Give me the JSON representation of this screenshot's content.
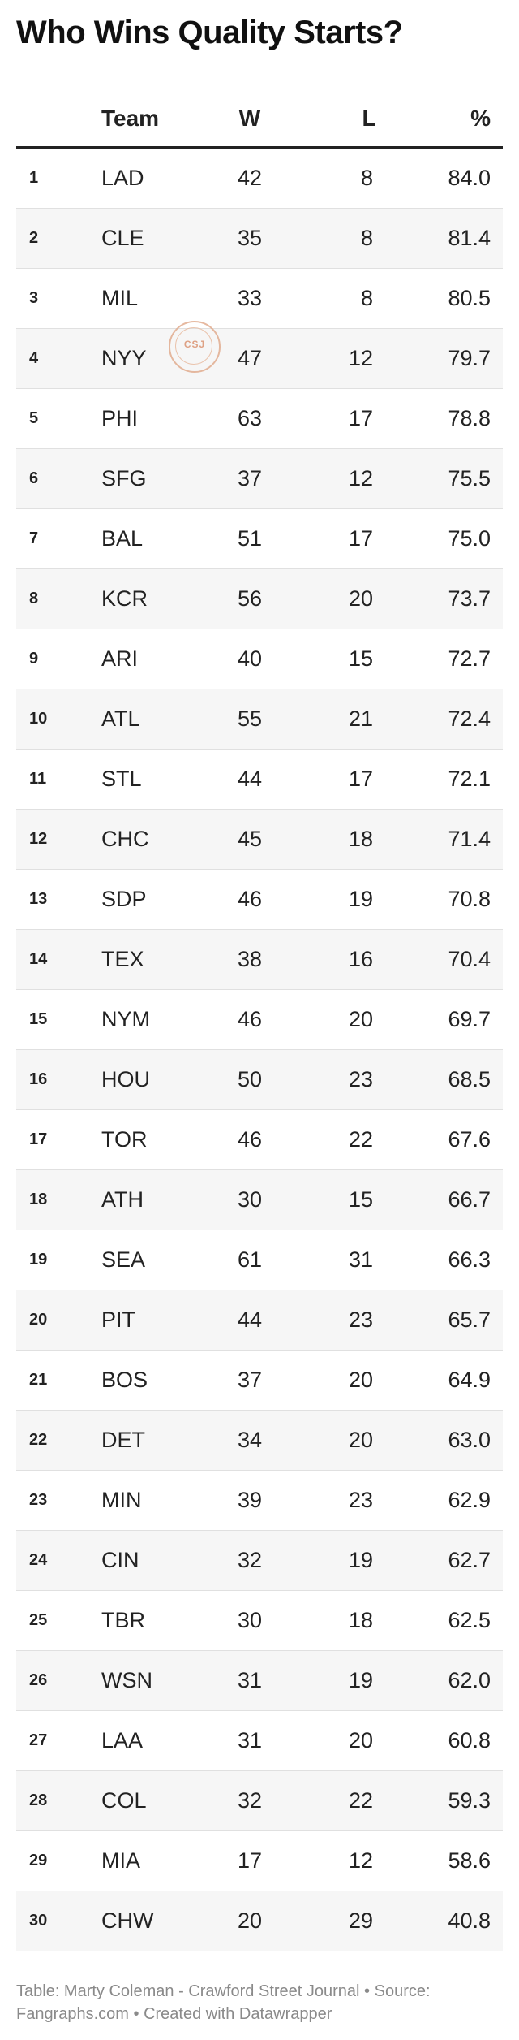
{
  "title": "Who Wins Quality Starts?",
  "columns": {
    "rank": "",
    "team": "Team",
    "w": "W",
    "l": "L",
    "pct": "%"
  },
  "stamp_text": "CSJ",
  "footer": "Table: Marty Coleman - Crawford Street Journal • Source: Fangraphs.com • Created with Datawrapper",
  "chart_data": {
    "type": "table",
    "title": "Who Wins Quality Starts?",
    "columns": [
      "",
      "Team",
      "W",
      "L",
      "%"
    ],
    "rows": [
      {
        "rank": "1",
        "team": "LAD",
        "w": "42",
        "l": "8",
        "pct": "84.0"
      },
      {
        "rank": "2",
        "team": "CLE",
        "w": "35",
        "l": "8",
        "pct": "81.4"
      },
      {
        "rank": "3",
        "team": "MIL",
        "w": "33",
        "l": "8",
        "pct": "80.5"
      },
      {
        "rank": "4",
        "team": "NYY",
        "w": "47",
        "l": "12",
        "pct": "79.7"
      },
      {
        "rank": "5",
        "team": "PHI",
        "w": "63",
        "l": "17",
        "pct": "78.8"
      },
      {
        "rank": "6",
        "team": "SFG",
        "w": "37",
        "l": "12",
        "pct": "75.5"
      },
      {
        "rank": "7",
        "team": "BAL",
        "w": "51",
        "l": "17",
        "pct": "75.0"
      },
      {
        "rank": "8",
        "team": "KCR",
        "w": "56",
        "l": "20",
        "pct": "73.7"
      },
      {
        "rank": "9",
        "team": "ARI",
        "w": "40",
        "l": "15",
        "pct": "72.7"
      },
      {
        "rank": "10",
        "team": "ATL",
        "w": "55",
        "l": "21",
        "pct": "72.4"
      },
      {
        "rank": "11",
        "team": "STL",
        "w": "44",
        "l": "17",
        "pct": "72.1"
      },
      {
        "rank": "12",
        "team": "CHC",
        "w": "45",
        "l": "18",
        "pct": "71.4"
      },
      {
        "rank": "13",
        "team": "SDP",
        "w": "46",
        "l": "19",
        "pct": "70.8"
      },
      {
        "rank": "14",
        "team": "TEX",
        "w": "38",
        "l": "16",
        "pct": "70.4"
      },
      {
        "rank": "15",
        "team": "NYM",
        "w": "46",
        "l": "20",
        "pct": "69.7"
      },
      {
        "rank": "16",
        "team": "HOU",
        "w": "50",
        "l": "23",
        "pct": "68.5"
      },
      {
        "rank": "17",
        "team": "TOR",
        "w": "46",
        "l": "22",
        "pct": "67.6"
      },
      {
        "rank": "18",
        "team": "ATH",
        "w": "30",
        "l": "15",
        "pct": "66.7"
      },
      {
        "rank": "19",
        "team": "SEA",
        "w": "61",
        "l": "31",
        "pct": "66.3"
      },
      {
        "rank": "20",
        "team": "PIT",
        "w": "44",
        "l": "23",
        "pct": "65.7"
      },
      {
        "rank": "21",
        "team": "BOS",
        "w": "37",
        "l": "20",
        "pct": "64.9"
      },
      {
        "rank": "22",
        "team": "DET",
        "w": "34",
        "l": "20",
        "pct": "63.0"
      },
      {
        "rank": "23",
        "team": "MIN",
        "w": "39",
        "l": "23",
        "pct": "62.9"
      },
      {
        "rank": "24",
        "team": "CIN",
        "w": "32",
        "l": "19",
        "pct": "62.7"
      },
      {
        "rank": "25",
        "team": "TBR",
        "w": "30",
        "l": "18",
        "pct": "62.5"
      },
      {
        "rank": "26",
        "team": "WSN",
        "w": "31",
        "l": "19",
        "pct": "62.0"
      },
      {
        "rank": "27",
        "team": "LAA",
        "w": "31",
        "l": "20",
        "pct": "60.8"
      },
      {
        "rank": "28",
        "team": "COL",
        "w": "32",
        "l": "22",
        "pct": "59.3"
      },
      {
        "rank": "29",
        "team": "MIA",
        "w": "17",
        "l": "12",
        "pct": "58.6"
      },
      {
        "rank": "30",
        "team": "CHW",
        "w": "20",
        "l": "29",
        "pct": "40.8"
      }
    ]
  }
}
